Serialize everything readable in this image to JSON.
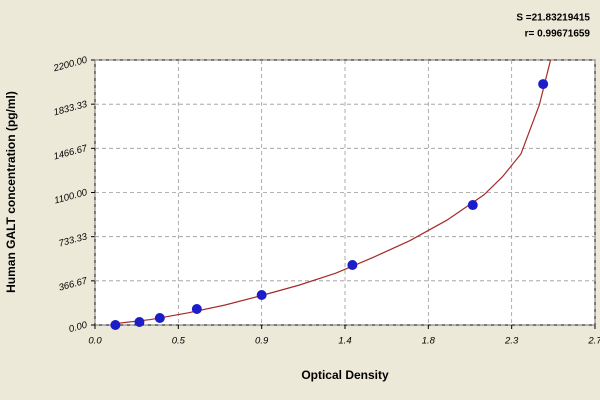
{
  "chart_data": {
    "type": "scatter",
    "xlabel": "Optical Density",
    "ylabel": "Human GALT concentration (pg/ml)",
    "annotations": [
      "S =21.83219415",
      "r= 0.99671659"
    ],
    "x": [
      0.11,
      0.24,
      0.35,
      0.55,
      0.9,
      1.39,
      2.04,
      2.42
    ],
    "values": [
      0,
      25,
      58,
      133,
      249,
      498,
      996,
      2000
    ],
    "color": "#1c1cc8",
    "curve": {
      "x": [
        0.1,
        0.3,
        0.5,
        0.7,
        0.9,
        1.1,
        1.3,
        1.5,
        1.7,
        1.9,
        2.1,
        2.2,
        2.3,
        2.4,
        2.46
      ],
      "values": [
        10,
        45,
        100,
        165,
        245,
        330,
        430,
        560,
        700,
        870,
        1080,
        1230,
        1420,
        1830,
        2200
      ],
      "color": "#a52a2a"
    },
    "xlim": [
      0,
      2.7
    ],
    "xticks": [
      {
        "value": 0,
        "label": "0.0"
      },
      {
        "value": 0.45,
        "label": "0.5"
      },
      0.9,
      {
        "value": 1.35,
        "label": "1.4"
      },
      1.8,
      {
        "value": 2.25,
        "label": "2.3"
      },
      2.7
    ],
    "ylim": [
      0,
      2200
    ],
    "yticks": [
      {
        "value": 0,
        "label": "0.00"
      },
      366.67,
      733.33,
      {
        "value": 1100,
        "label": "1100.00"
      },
      1466.67,
      1833.33,
      {
        "value": 2200,
        "label": "2200.00"
      }
    ],
    "grid": true
  }
}
